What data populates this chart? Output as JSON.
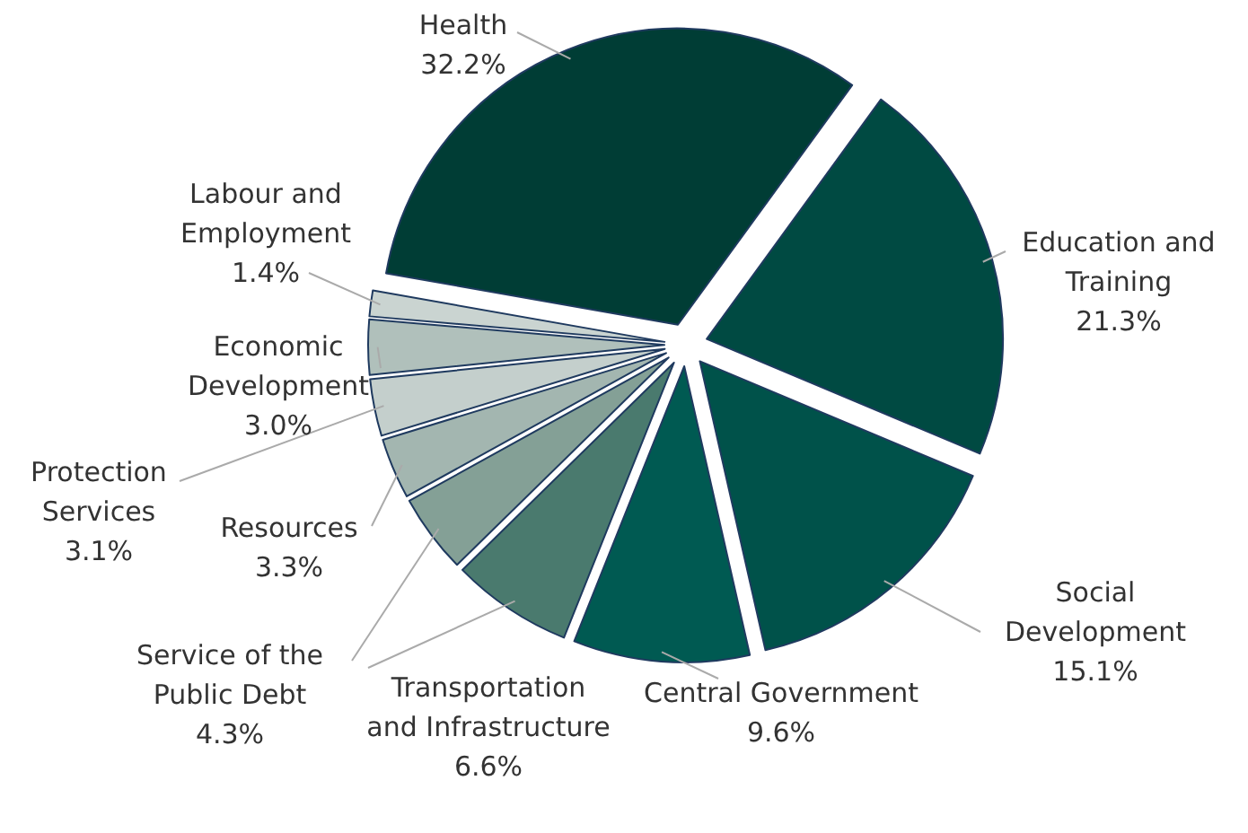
{
  "chart_data": {
    "type": "pie",
    "categories": [
      "Health",
      "Education and Training",
      "Social Development",
      "Central Government",
      "Transportation and Infrastructure",
      "Service of the Public Debt",
      "Resources",
      "Protection Services",
      "Economic Development",
      "Labour and Employment"
    ],
    "values": [
      32.2,
      21.3,
      15.1,
      9.6,
      6.6,
      4.3,
      3.3,
      3.1,
      3.0,
      1.4
    ],
    "value_labels": [
      "32.2%",
      "21.3%",
      "15.1%",
      "9.6%",
      "6.6%",
      "4.3%",
      "3.3%",
      "3.1%",
      "3.0%",
      "1.4%"
    ],
    "colors": [
      "#003d35",
      "#004a42",
      "#00524a",
      "#005a52",
      "#4a7a6e",
      "#84a096",
      "#a3b6b0",
      "#c4cfcc",
      "#b0c0bb",
      "#cad4d1"
    ],
    "legend": false
  }
}
